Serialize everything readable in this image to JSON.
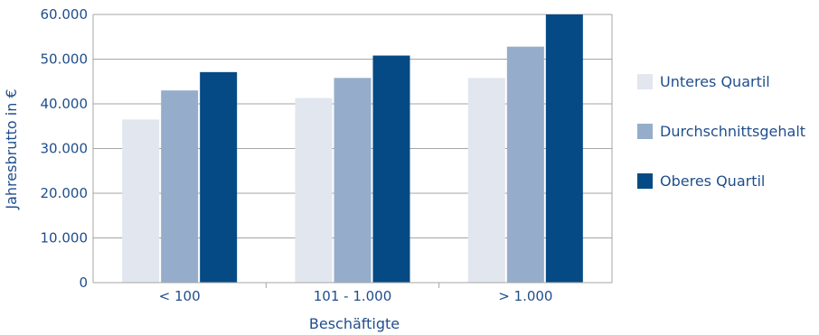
{
  "chart_data": {
    "type": "bar",
    "categories": [
      "< 100",
      "101 - 1.000",
      "> 1.000"
    ],
    "series": [
      {
        "name": "Unteres Quartil",
        "color": "#e1e6ef",
        "values": [
          36500,
          41300,
          45800
        ]
      },
      {
        "name": "Durchschnittsgehalt",
        "color": "#95adcb",
        "values": [
          43000,
          45800,
          52800
        ]
      },
      {
        "name": "Oberes Quartil",
        "color": "#054a84",
        "values": [
          47100,
          50800,
          60000
        ]
      }
    ],
    "xlabel": "Beschäftigte",
    "ylabel": "Jahresbrutto in €",
    "ylim": [
      0,
      60000
    ],
    "yticks": [
      "0",
      "10.000",
      "20.000",
      "30.000",
      "40.000",
      "50.000",
      "60.000"
    ],
    "grid": true,
    "legend_position": "right"
  }
}
